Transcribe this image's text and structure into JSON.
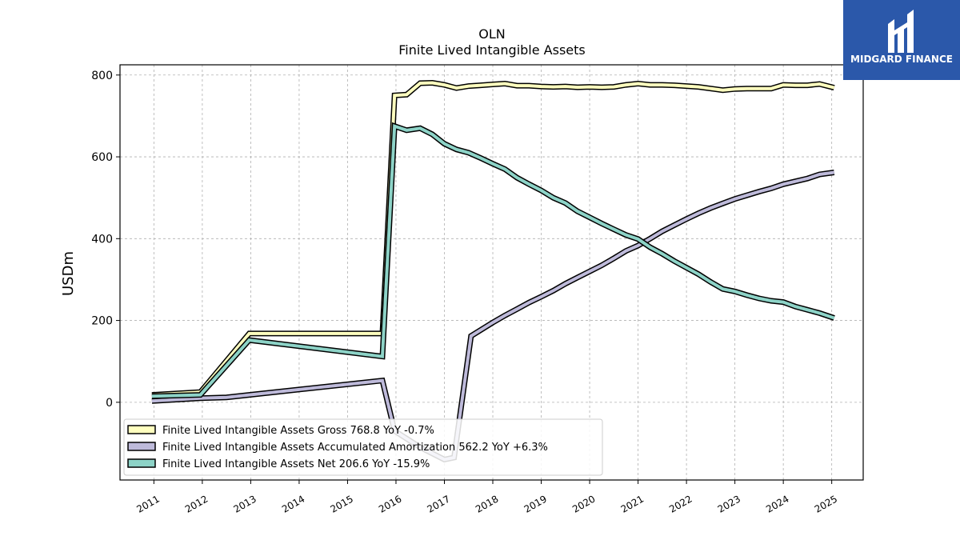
{
  "chart_data": {
    "type": "line",
    "title": "OLN",
    "subtitle": "Finite Lived Intangible Assets",
    "ylabel": "USDm",
    "ylim": [
      -190,
      825
    ],
    "xlim": [
      2010.3,
      2025.65
    ],
    "yticks": [
      0,
      200,
      400,
      600,
      800
    ],
    "xticks": [
      "2011",
      "2012",
      "2013",
      "2014",
      "2015",
      "2016",
      "2017",
      "2018",
      "2019",
      "2020",
      "2021",
      "2022",
      "2023",
      "2024",
      "2025"
    ],
    "grid": true,
    "legend_position": "bottom-left",
    "series": [
      {
        "name": "Finite Lived Intangible Assets Gross",
        "legend": "Finite Lived Intangible Assets Gross  768.8 YoY -0.7%",
        "color": "#ffffbf",
        "points": [
          [
            2010.96,
            18
          ],
          [
            2011.96,
            25
          ],
          [
            2012.97,
            168
          ],
          [
            2015.72,
            168
          ],
          [
            2015.97,
            750
          ],
          [
            2016.22,
            752
          ],
          [
            2016.5,
            780
          ],
          [
            2016.75,
            781
          ],
          [
            2017.0,
            776
          ],
          [
            2017.25,
            768
          ],
          [
            2017.5,
            773
          ],
          [
            2017.75,
            775
          ],
          [
            2018.0,
            777
          ],
          [
            2018.25,
            779
          ],
          [
            2018.5,
            774
          ],
          [
            2018.75,
            774
          ],
          [
            2019.0,
            772
          ],
          [
            2019.25,
            771
          ],
          [
            2019.5,
            772
          ],
          [
            2019.75,
            770
          ],
          [
            2020.0,
            771
          ],
          [
            2020.25,
            770
          ],
          [
            2020.5,
            771
          ],
          [
            2020.75,
            776
          ],
          [
            2021.0,
            779
          ],
          [
            2021.25,
            776
          ],
          [
            2021.5,
            776
          ],
          [
            2021.75,
            775
          ],
          [
            2022.0,
            773
          ],
          [
            2022.25,
            771
          ],
          [
            2022.5,
            767
          ],
          [
            2022.75,
            763
          ],
          [
            2023.0,
            766
          ],
          [
            2023.25,
            767
          ],
          [
            2023.5,
            767
          ],
          [
            2023.75,
            767
          ],
          [
            2024.0,
            776
          ],
          [
            2024.25,
            775
          ],
          [
            2024.5,
            775
          ],
          [
            2024.75,
            778
          ],
          [
            2025.05,
            769
          ]
        ]
      },
      {
        "name": "Finite Lived Intangible Assets Accumulated Amortization",
        "legend": "Finite Lived Intangible Assets Accumulated Amortization  562.2 YoY +6.3%",
        "color": "#bebada",
        "points": [
          [
            2010.96,
            3
          ],
          [
            2011.96,
            10
          ],
          [
            2012.5,
            12
          ],
          [
            2012.97,
            18
          ],
          [
            2015.72,
            53
          ],
          [
            2015.97,
            -70
          ],
          [
            2016.5,
            -110
          ],
          [
            2017.0,
            -140
          ],
          [
            2017.2,
            -135
          ],
          [
            2017.55,
            162
          ],
          [
            2018.0,
            195
          ],
          [
            2018.25,
            212
          ],
          [
            2018.5,
            228
          ],
          [
            2018.75,
            244
          ],
          [
            2019.0,
            258
          ],
          [
            2019.25,
            273
          ],
          [
            2019.5,
            290
          ],
          [
            2019.75,
            305
          ],
          [
            2020.0,
            320
          ],
          [
            2020.25,
            335
          ],
          [
            2020.5,
            352
          ],
          [
            2020.75,
            370
          ],
          [
            2021.0,
            383
          ],
          [
            2021.25,
            400
          ],
          [
            2021.5,
            418
          ],
          [
            2021.75,
            433
          ],
          [
            2022.0,
            448
          ],
          [
            2022.25,
            462
          ],
          [
            2022.5,
            475
          ],
          [
            2022.75,
            486
          ],
          [
            2023.0,
            497
          ],
          [
            2023.25,
            506
          ],
          [
            2023.5,
            515
          ],
          [
            2023.75,
            523
          ],
          [
            2024.0,
            533
          ],
          [
            2024.25,
            540
          ],
          [
            2024.5,
            547
          ],
          [
            2024.75,
            557
          ],
          [
            2025.05,
            562
          ]
        ]
      },
      {
        "name": "Finite Lived Intangible Assets Net",
        "legend": "Finite Lived Intangible Assets Net  206.6 YoY -15.9%",
        "color": "#8dd3c7",
        "points": [
          [
            2010.96,
            15
          ],
          [
            2011.96,
            18
          ],
          [
            2012.97,
            152
          ],
          [
            2015.72,
            112
          ],
          [
            2015.97,
            675
          ],
          [
            2016.22,
            665
          ],
          [
            2016.5,
            670
          ],
          [
            2016.75,
            655
          ],
          [
            2017.0,
            632
          ],
          [
            2017.25,
            618
          ],
          [
            2017.5,
            610
          ],
          [
            2017.75,
            597
          ],
          [
            2018.0,
            583
          ],
          [
            2018.25,
            570
          ],
          [
            2018.5,
            549
          ],
          [
            2018.75,
            533
          ],
          [
            2019.0,
            518
          ],
          [
            2019.25,
            500
          ],
          [
            2019.5,
            487
          ],
          [
            2019.75,
            467
          ],
          [
            2020.0,
            452
          ],
          [
            2020.25,
            437
          ],
          [
            2020.5,
            423
          ],
          [
            2020.75,
            409
          ],
          [
            2021.0,
            399
          ],
          [
            2021.25,
            379
          ],
          [
            2021.5,
            363
          ],
          [
            2021.75,
            345
          ],
          [
            2022.0,
            329
          ],
          [
            2022.25,
            313
          ],
          [
            2022.5,
            294
          ],
          [
            2022.75,
            277
          ],
          [
            2023.0,
            271
          ],
          [
            2023.25,
            262
          ],
          [
            2023.5,
            254
          ],
          [
            2023.75,
            248
          ],
          [
            2024.0,
            245
          ],
          [
            2024.25,
            234
          ],
          [
            2024.5,
            226
          ],
          [
            2024.75,
            218
          ],
          [
            2025.05,
            206
          ]
        ]
      }
    ]
  },
  "logo": {
    "text": "MIDGARD FINANCE",
    "color": "#2b58aa"
  }
}
